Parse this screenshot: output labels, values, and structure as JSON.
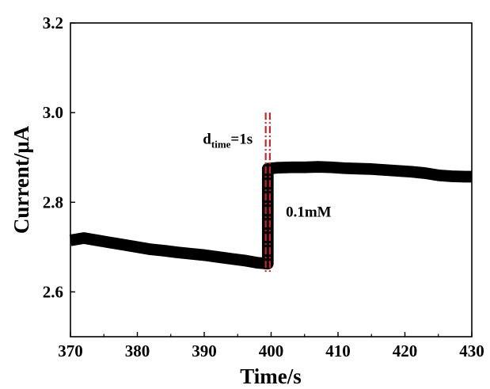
{
  "chart_data": {
    "type": "line",
    "xlabel": "Time/s",
    "ylabel": "Current/μA",
    "xlim": [
      370,
      430
    ],
    "ylim": [
      2.5,
      3.2
    ],
    "x_ticks": [
      "370",
      "380",
      "390",
      "400",
      "410",
      "420",
      "430"
    ],
    "y_ticks": [
      "2.6",
      "2.8",
      "3.0",
      "3.2"
    ],
    "grid": false,
    "legend": "none",
    "series": [
      {
        "color": "#000000",
        "x": [
          370,
          372,
          374,
          376,
          378,
          380,
          382,
          384,
          386,
          388,
          390,
          392,
          394,
          396,
          398,
          399.5,
          399.5,
          401,
          403,
          405,
          407,
          409,
          411,
          413,
          415,
          417,
          419,
          421,
          423,
          425,
          427,
          429,
          430
        ],
        "y": [
          2.715,
          2.72,
          2.715,
          2.71,
          2.705,
          2.7,
          2.695,
          2.692,
          2.688,
          2.685,
          2.682,
          2.678,
          2.674,
          2.67,
          2.665,
          2.663,
          2.875,
          2.877,
          2.878,
          2.878,
          2.879,
          2.878,
          2.876,
          2.875,
          2.874,
          2.872,
          2.87,
          2.868,
          2.865,
          2.86,
          2.858,
          2.857,
          2.857
        ],
        "noise_band": 0.013
      }
    ],
    "markers": [
      {
        "type": "vertical-dashdot",
        "x": 399.5,
        "y_range": [
          2.64,
          3.0
        ],
        "color": "#c0282a"
      }
    ],
    "annotations": [
      {
        "main": "d",
        "sub": "time",
        "rest": "=1s",
        "x": 389.8,
        "y": 2.93
      },
      {
        "text": "0.1mM",
        "x": 402.2,
        "y": 2.768
      }
    ]
  }
}
